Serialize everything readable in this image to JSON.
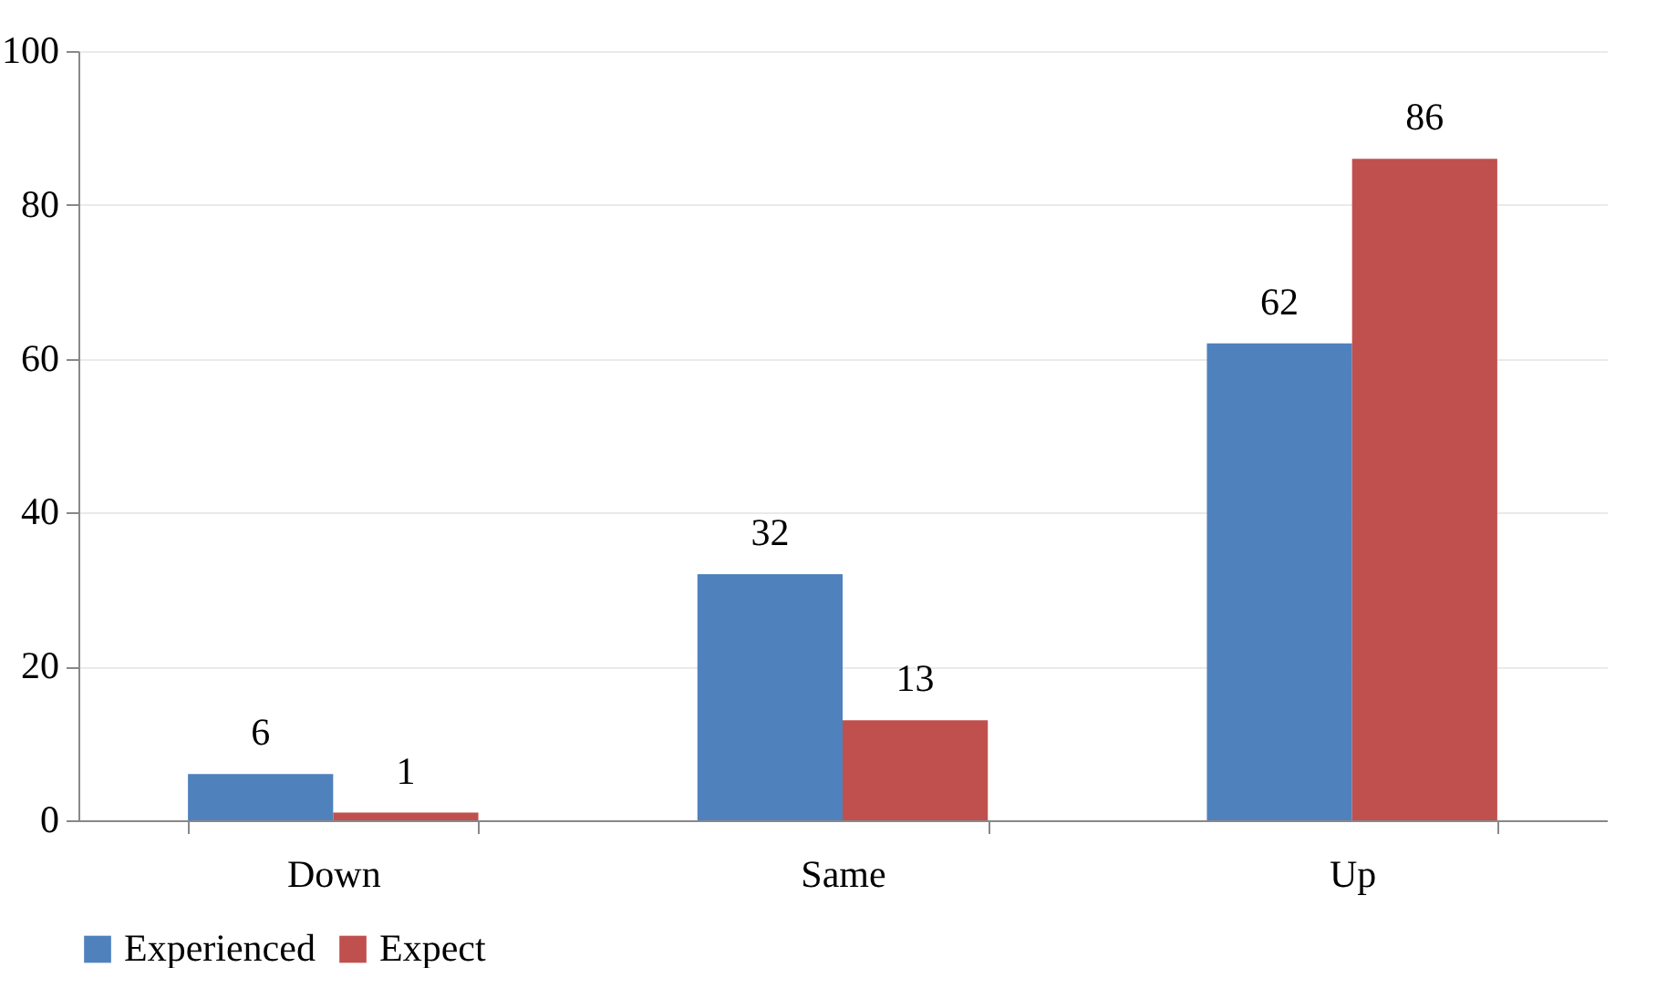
{
  "chart_data": {
    "type": "bar",
    "categories": [
      "Down",
      "Same",
      "Up"
    ],
    "series": [
      {
        "name": "Experienced",
        "color": "#4f81bd",
        "values": [
          6,
          32,
          62
        ]
      },
      {
        "name": "Expect",
        "color": "#c0504d",
        "values": [
          1,
          13,
          86
        ]
      }
    ],
    "ylim": [
      0,
      100
    ],
    "yticks": [
      0,
      20,
      40,
      60,
      80,
      100
    ],
    "grid": "y",
    "legend": "bottom",
    "data_labels": true
  }
}
